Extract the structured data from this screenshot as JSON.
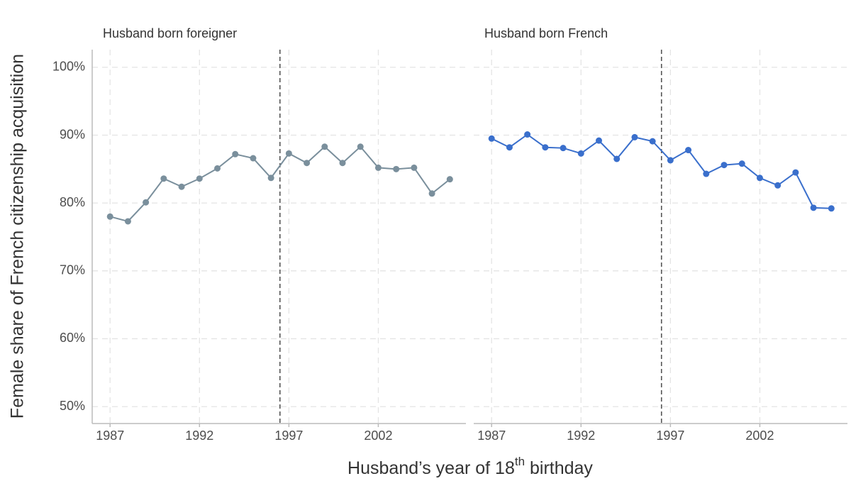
{
  "chart_data": {
    "type": "line",
    "ylabel": "Female share of French citizenship acquisition",
    "xlabel": [
      "Husband’s year of 18",
      "th",
      " birthday"
    ],
    "xlim": [
      1986,
      2006.9
    ],
    "xticks": [
      1987,
      1992,
      1997,
      2002
    ],
    "ylim": [
      47.5,
      102.6
    ],
    "yticks": [
      {
        "value": 50,
        "label": "50%"
      },
      {
        "value": 60,
        "label": "60%"
      },
      {
        "value": 70,
        "label": "70%"
      },
      {
        "value": 80,
        "label": "80%"
      },
      {
        "value": 90,
        "label": "90%"
      },
      {
        "value": 100,
        "label": "100%"
      }
    ],
    "grid": true,
    "panels": [
      {
        "title": "Husband born foreigner",
        "color": "#7a8f9c",
        "vline": 1996.5,
        "x": [
          1987,
          1988,
          1989,
          1990,
          1991,
          1992,
          1993,
          1994,
          1995,
          1996,
          1997,
          1998,
          1999,
          2000,
          2001,
          2002,
          2003,
          2004,
          2005,
          2006
        ],
        "values": [
          78.0,
          77.3,
          80.1,
          83.6,
          82.4,
          83.6,
          85.1,
          87.2,
          86.6,
          83.7,
          87.3,
          85.9,
          88.3,
          85.9,
          88.3,
          85.2,
          85.0,
          85.2,
          81.4,
          83.5
        ]
      },
      {
        "title": "Husband born French",
        "color": "#3a6fcc",
        "vline": 1996.5,
        "x": [
          1987,
          1988,
          1989,
          1990,
          1991,
          1992,
          1993,
          1994,
          1995,
          1996,
          1997,
          1998,
          1999,
          2000,
          2001,
          2002,
          2003,
          2004,
          2005,
          2006
        ],
        "values": [
          89.5,
          88.2,
          90.1,
          88.2,
          88.1,
          87.3,
          89.2,
          86.5,
          89.7,
          89.1,
          86.3,
          87.8,
          84.3,
          85.6,
          85.8,
          83.7,
          82.6,
          84.5,
          79.3,
          79.2
        ]
      }
    ]
  }
}
